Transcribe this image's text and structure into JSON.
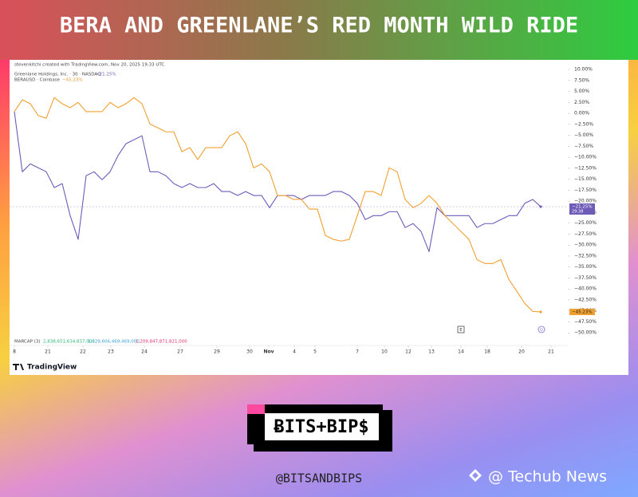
{
  "title": "BERA AND GREENLANE’S RED MONTH WILD RIDE",
  "logo": "ɃITS+BIP$",
  "handle": "@BITSANDBIPS",
  "watermark": "@ Techub News",
  "chart_data": {
    "type": "line",
    "credit": "stevenkitchi created with TradingView.com, Nov 20, 2025 19:33 UTC",
    "brand": "TradingView",
    "x": [
      0,
      1,
      2,
      3,
      4,
      5,
      6,
      7,
      8,
      9,
      10,
      11,
      12,
      13,
      14,
      15,
      16,
      17,
      18,
      19,
      20,
      21,
      22,
      23,
      24,
      25,
      26,
      27,
      28,
      29,
      30,
      31,
      32,
      33,
      34,
      35,
      36,
      37,
      38,
      39,
      40,
      41,
      42,
      43,
      44,
      45,
      46,
      47,
      48,
      49,
      50,
      51,
      52,
      53,
      54,
      55,
      56,
      57,
      58,
      59,
      60,
      61,
      62,
      63,
      64,
      65,
      66
    ],
    "xlim": [
      -0.6,
      69.2
    ],
    "xticks": [
      {
        "value": 0,
        "label": "8"
      },
      {
        "value": 4.2,
        "label": "21"
      },
      {
        "value": 8.6,
        "label": "22"
      },
      {
        "value": 12.1,
        "label": "23"
      },
      {
        "value": 16.3,
        "label": "24"
      },
      {
        "value": 20.8,
        "label": "27"
      },
      {
        "value": 25.4,
        "label": "29"
      },
      {
        "value": 29.5,
        "label": "30"
      },
      {
        "value": 31.9,
        "label": "Nov"
      },
      {
        "value": 35.1,
        "label": "4"
      },
      {
        "value": 37.7,
        "label": "5"
      },
      {
        "value": 43,
        "label": "7"
      },
      {
        "value": 46.4,
        "label": "10"
      },
      {
        "value": 49.4,
        "label": "12"
      },
      {
        "value": 52.3,
        "label": "13"
      },
      {
        "value": 56,
        "label": "14"
      },
      {
        "value": 59.3,
        "label": "18"
      },
      {
        "value": 63.6,
        "label": "20"
      },
      {
        "value": 67.3,
        "label": "21"
      }
    ],
    "ylim": [
      -50.5,
      12.2
    ],
    "yticks": [
      {
        "value": 10,
        "label": "10.00%"
      },
      {
        "value": 7.5,
        "label": "7.50%"
      },
      {
        "value": 5,
        "label": "5.00%"
      },
      {
        "value": 2.5,
        "label": "2.50%"
      },
      {
        "value": 0,
        "label": "0.00%"
      },
      {
        "value": -2.5,
        "label": "−2.50%"
      },
      {
        "value": -5,
        "label": "−5.00%"
      },
      {
        "value": -7.5,
        "label": "−7.50%"
      },
      {
        "value": -10,
        "label": "−10.00%"
      },
      {
        "value": -12.5,
        "label": "−12.50%"
      },
      {
        "value": -15,
        "label": "−15.00%"
      },
      {
        "value": -17.5,
        "label": "−17.50%"
      },
      {
        "value": -20,
        "label": "−20.00%"
      },
      {
        "value": -22.5,
        "label": "−22.50%"
      },
      {
        "value": -25,
        "label": "−25.00%"
      },
      {
        "value": -27.5,
        "label": "−27.50%"
      },
      {
        "value": -30,
        "label": "−30.00%"
      },
      {
        "value": -32.5,
        "label": "−32.50%"
      },
      {
        "value": -35,
        "label": "−35.00%"
      },
      {
        "value": -37.5,
        "label": "−37.50%"
      },
      {
        "value": -40,
        "label": "−40.00%"
      },
      {
        "value": -42.5,
        "label": "−42.50%"
      },
      {
        "value": -45,
        "label": "−45.00%"
      },
      {
        "value": -47.5,
        "label": "−47.50%"
      },
      {
        "value": -50,
        "label": "−50.00%"
      }
    ],
    "grid": false,
    "series": [
      {
        "name": "Greenlane Holdings, Inc. · 30 · NASDAQ",
        "change": "−21.25%",
        "color": "#6e5bb8",
        "badge": "−21.25%",
        "countdown": "29:38",
        "values": [
          0.4,
          -13.3,
          -11.5,
          -12.4,
          -13.3,
          -16.9,
          -16.0,
          -23.3,
          -28.7,
          -14.2,
          -13.3,
          -15.1,
          -13.3,
          -9.6,
          -6.9,
          -6.0,
          -5.1,
          -13.3,
          -13.3,
          -14.2,
          -16.0,
          -16.9,
          -16.0,
          -16.9,
          -16.9,
          -16.0,
          -17.8,
          -17.8,
          -18.7,
          -17.8,
          -18.7,
          -18.7,
          -21.5,
          -18.7,
          -18.7,
          -18.7,
          -19.6,
          -18.7,
          -18.7,
          -18.7,
          -17.8,
          -17.8,
          -18.7,
          -20.5,
          -24.2,
          -23.3,
          -23.3,
          -22.4,
          -22.4,
          -26.0,
          -25.1,
          -26.9,
          -31.5,
          -21.5,
          -23.3,
          -23.3,
          -23.3,
          -23.3,
          -26.0,
          -25.1,
          -25.1,
          -24.2,
          -23.3,
          -23.3,
          -20.5,
          -19.6,
          -21.25
        ]
      },
      {
        "name": "BERAUSD · Coinbase",
        "change": "−45.23%",
        "color": "#f0a030",
        "badge": "−45.23%",
        "values": [
          0.4,
          3.1,
          2.2,
          -0.5,
          -1.1,
          3.6,
          2.2,
          1.3,
          2.5,
          0.4,
          0.4,
          0.4,
          2.5,
          1.3,
          2.2,
          3.6,
          2.2,
          -2.4,
          -3.3,
          -4.2,
          -4.2,
          -8.7,
          -7.8,
          -10.5,
          -7.8,
          -7.8,
          -7.8,
          -5.1,
          -4.2,
          -6.9,
          -12.4,
          -11.5,
          -13.3,
          -18.7,
          -18.7,
          -19.6,
          -19.6,
          -21.8,
          -21.8,
          -27.8,
          -28.7,
          -29.1,
          -28.7,
          -23.3,
          -17.8,
          -17.8,
          -18.7,
          -12.4,
          -13.3,
          -19.6,
          -21.5,
          -20.5,
          -18.7,
          -20.5,
          -23.3,
          -25.1,
          -26.9,
          -28.7,
          -33.3,
          -34.2,
          -34.2,
          -33.3,
          -37.8,
          -40.5,
          -43.3,
          -45.1,
          -45.23
        ]
      }
    ],
    "indicator": {
      "name": "MARCAP (3)",
      "values": [
        "2,838,651,634,837,000",
        "1,529,606,469,469,000",
        "1,209,847,871,821,000"
      ]
    },
    "markers": [
      "E",
      "D"
    ]
  }
}
